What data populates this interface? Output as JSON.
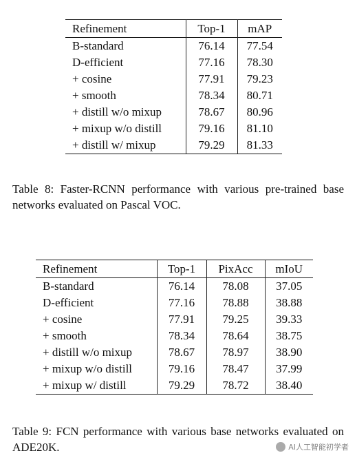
{
  "table8": {
    "header": [
      "Refinement",
      "Top-1",
      "mAP"
    ],
    "rows": [
      [
        "B-standard",
        "76.14",
        "77.54"
      ],
      [
        "D-efficient",
        "77.16",
        "78.30"
      ],
      [
        "+ cosine",
        "77.91",
        "79.23"
      ],
      [
        "+ smooth",
        "78.34",
        "80.71"
      ],
      [
        "+ distill w/o mixup",
        "78.67",
        "80.96"
      ],
      [
        "+ mixup w/o distill",
        "79.16",
        "81.10"
      ],
      [
        "+ distill w/ mixup",
        "79.29",
        "81.33"
      ]
    ],
    "caption": "Table 8: Faster-RCNN performance with various pre-trained base networks evaluated on Pascal VOC."
  },
  "table9": {
    "header": [
      "Refinement",
      "Top-1",
      "PixAcc",
      "mIoU"
    ],
    "rows": [
      [
        "B-standard",
        "76.14",
        "78.08",
        "37.05"
      ],
      [
        "D-efficient",
        "77.16",
        "78.88",
        "38.88"
      ],
      [
        "+ cosine",
        "77.91",
        "79.25",
        "39.33"
      ],
      [
        "+ smooth",
        "78.34",
        "78.64",
        "38.75"
      ],
      [
        "+ distill w/o mixup",
        "78.67",
        "78.97",
        "38.90"
      ],
      [
        "+ mixup w/o distill",
        "79.16",
        "78.47",
        "37.99"
      ],
      [
        "+ mixup w/ distill",
        "79.29",
        "78.72",
        "38.40"
      ]
    ],
    "caption": "Table 9: FCN performance with various base networks evaluated on ADE20K."
  },
  "watermark": "AI人工智能初学者"
}
